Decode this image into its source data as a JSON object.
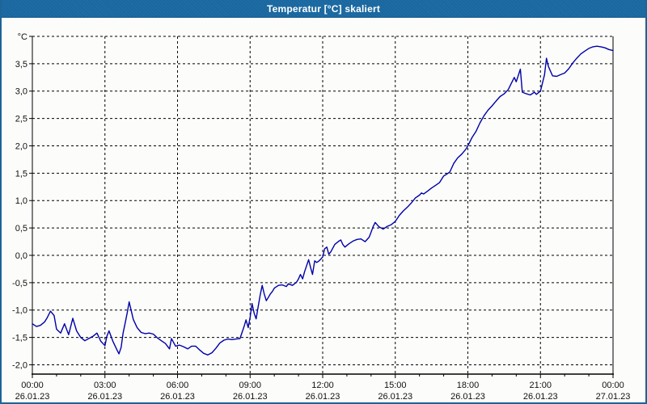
{
  "window": {
    "title": "Temperatur [°C] skaliert"
  },
  "colors": {
    "titlebar_bg": "#1d6ca5",
    "titlebar_text": "#ffffff",
    "window_border": "#1e6496",
    "chart_bg": "#fcfdfb",
    "grid_line": "#000000",
    "axis_line": "#000000",
    "label_text": "#111111",
    "series_line": "#0000a8"
  },
  "chart_data": {
    "type": "line",
    "title": "Temperatur [°C] skaliert",
    "xlabel": "",
    "ylabel": "°C",
    "grid": true,
    "legend": "none",
    "xlim_hours": [
      0,
      24
    ],
    "ylim": [
      -2.17,
      4.0
    ],
    "y_unit_label": {
      "label": "°C",
      "value": 4.0
    },
    "y_ticks": [
      {
        "label": "3,5",
        "value": 3.5
      },
      {
        "label": "3,0",
        "value": 3.0
      },
      {
        "label": "2,5",
        "value": 2.5
      },
      {
        "label": "2,0",
        "value": 2.0
      },
      {
        "label": "1,5",
        "value": 1.5
      },
      {
        "label": "1,0",
        "value": 1.0
      },
      {
        "label": "0,5",
        "value": 0.5
      },
      {
        "label": "0,0",
        "value": 0.0
      },
      {
        "label": "-0,5",
        "value": -0.5
      },
      {
        "label": "-1,0",
        "value": -1.0
      },
      {
        "label": "-1,5",
        "value": -1.5
      },
      {
        "label": "-2,0",
        "value": -2.0
      }
    ],
    "x_ticks": [
      {
        "hour": 0,
        "time": "00:00",
        "date": "26.01.23"
      },
      {
        "hour": 3,
        "time": "03:00",
        "date": "26.01.23"
      },
      {
        "hour": 6,
        "time": "06:00",
        "date": "26.01.23"
      },
      {
        "hour": 9,
        "time": "09:00",
        "date": "26.01.23"
      },
      {
        "hour": 12,
        "time": "12:00",
        "date": "26.01.23"
      },
      {
        "hour": 15,
        "time": "15:00",
        "date": "26.01.23"
      },
      {
        "hour": 18,
        "time": "18:00",
        "date": "26.01.23"
      },
      {
        "hour": 21,
        "time": "21:00",
        "date": "26.01.23"
      },
      {
        "hour": 24,
        "time": "00:00",
        "date": "27.01.23"
      }
    ],
    "series": [
      {
        "name": "Temperatur",
        "color": "#0000a8",
        "points": [
          [
            0.0,
            -1.25
          ],
          [
            0.17,
            -1.3
          ],
          [
            0.33,
            -1.28
          ],
          [
            0.5,
            -1.22
          ],
          [
            0.6,
            -1.15
          ],
          [
            0.75,
            -1.02
          ],
          [
            0.9,
            -1.1
          ],
          [
            1.0,
            -1.35
          ],
          [
            1.17,
            -1.42
          ],
          [
            1.33,
            -1.25
          ],
          [
            1.5,
            -1.45
          ],
          [
            1.67,
            -1.15
          ],
          [
            1.83,
            -1.38
          ],
          [
            2.0,
            -1.5
          ],
          [
            2.17,
            -1.56
          ],
          [
            2.33,
            -1.52
          ],
          [
            2.5,
            -1.48
          ],
          [
            2.67,
            -1.42
          ],
          [
            2.83,
            -1.57
          ],
          [
            3.0,
            -1.65
          ],
          [
            3.08,
            -1.48
          ],
          [
            3.17,
            -1.38
          ],
          [
            3.33,
            -1.57
          ],
          [
            3.5,
            -1.73
          ],
          [
            3.58,
            -1.8
          ],
          [
            3.67,
            -1.68
          ],
          [
            3.75,
            -1.42
          ],
          [
            3.83,
            -1.25
          ],
          [
            3.92,
            -1.05
          ],
          [
            4.0,
            -0.85
          ],
          [
            4.08,
            -1.0
          ],
          [
            4.17,
            -1.17
          ],
          [
            4.33,
            -1.32
          ],
          [
            4.5,
            -1.41
          ],
          [
            4.67,
            -1.43
          ],
          [
            4.83,
            -1.42
          ],
          [
            5.0,
            -1.44
          ],
          [
            5.17,
            -1.51
          ],
          [
            5.33,
            -1.56
          ],
          [
            5.5,
            -1.61
          ],
          [
            5.67,
            -1.71
          ],
          [
            5.75,
            -1.52
          ],
          [
            5.92,
            -1.66
          ],
          [
            6.08,
            -1.64
          ],
          [
            6.25,
            -1.67
          ],
          [
            6.42,
            -1.71
          ],
          [
            6.58,
            -1.66
          ],
          [
            6.75,
            -1.66
          ],
          [
            6.92,
            -1.73
          ],
          [
            7.08,
            -1.79
          ],
          [
            7.25,
            -1.82
          ],
          [
            7.42,
            -1.78
          ],
          [
            7.58,
            -1.7
          ],
          [
            7.75,
            -1.6
          ],
          [
            7.92,
            -1.55
          ],
          [
            8.08,
            -1.53
          ],
          [
            8.25,
            -1.54
          ],
          [
            8.42,
            -1.53
          ],
          [
            8.58,
            -1.52
          ],
          [
            8.75,
            -1.3
          ],
          [
            8.83,
            -1.18
          ],
          [
            8.92,
            -1.32
          ],
          [
            9.0,
            -1.13
          ],
          [
            9.08,
            -0.88
          ],
          [
            9.17,
            -1.06
          ],
          [
            9.25,
            -1.16
          ],
          [
            9.33,
            -0.95
          ],
          [
            9.42,
            -0.72
          ],
          [
            9.5,
            -0.55
          ],
          [
            9.58,
            -0.7
          ],
          [
            9.67,
            -0.83
          ],
          [
            9.75,
            -0.77
          ],
          [
            9.83,
            -0.71
          ],
          [
            9.92,
            -0.66
          ],
          [
            10.0,
            -0.6
          ],
          [
            10.17,
            -0.55
          ],
          [
            10.33,
            -0.54
          ],
          [
            10.5,
            -0.57
          ],
          [
            10.58,
            -0.52
          ],
          [
            10.75,
            -0.55
          ],
          [
            10.92,
            -0.49
          ],
          [
            11.0,
            -0.43
          ],
          [
            11.08,
            -0.35
          ],
          [
            11.17,
            -0.43
          ],
          [
            11.25,
            -0.3
          ],
          [
            11.42,
            -0.08
          ],
          [
            11.5,
            -0.22
          ],
          [
            11.58,
            -0.35
          ],
          [
            11.67,
            -0.1
          ],
          [
            11.75,
            -0.13
          ],
          [
            11.83,
            -0.11
          ],
          [
            11.92,
            -0.07
          ],
          [
            12.0,
            -0.03
          ],
          [
            12.08,
            0.12
          ],
          [
            12.17,
            0.15
          ],
          [
            12.25,
            0.02
          ],
          [
            12.33,
            0.06
          ],
          [
            12.5,
            0.2
          ],
          [
            12.67,
            0.26
          ],
          [
            12.75,
            0.28
          ],
          [
            12.83,
            0.2
          ],
          [
            12.92,
            0.15
          ],
          [
            13.08,
            0.21
          ],
          [
            13.25,
            0.26
          ],
          [
            13.42,
            0.29
          ],
          [
            13.58,
            0.3
          ],
          [
            13.75,
            0.25
          ],
          [
            13.92,
            0.33
          ],
          [
            14.0,
            0.42
          ],
          [
            14.08,
            0.52
          ],
          [
            14.17,
            0.6
          ],
          [
            14.33,
            0.52
          ],
          [
            14.5,
            0.48
          ],
          [
            14.67,
            0.53
          ],
          [
            14.83,
            0.56
          ],
          [
            15.0,
            0.62
          ],
          [
            15.17,
            0.73
          ],
          [
            15.33,
            0.81
          ],
          [
            15.5,
            0.88
          ],
          [
            15.67,
            0.96
          ],
          [
            15.83,
            1.05
          ],
          [
            16.0,
            1.1
          ],
          [
            16.08,
            1.14
          ],
          [
            16.17,
            1.12
          ],
          [
            16.33,
            1.17
          ],
          [
            16.5,
            1.23
          ],
          [
            16.67,
            1.28
          ],
          [
            16.83,
            1.33
          ],
          [
            17.0,
            1.45
          ],
          [
            17.08,
            1.47
          ],
          [
            17.25,
            1.52
          ],
          [
            17.42,
            1.68
          ],
          [
            17.58,
            1.78
          ],
          [
            17.75,
            1.85
          ],
          [
            17.92,
            1.94
          ],
          [
            18.0,
            2.0
          ],
          [
            18.17,
            2.15
          ],
          [
            18.33,
            2.26
          ],
          [
            18.5,
            2.42
          ],
          [
            18.67,
            2.55
          ],
          [
            18.83,
            2.65
          ],
          [
            19.0,
            2.73
          ],
          [
            19.17,
            2.82
          ],
          [
            19.33,
            2.9
          ],
          [
            19.5,
            2.95
          ],
          [
            19.67,
            3.03
          ],
          [
            19.83,
            3.17
          ],
          [
            19.92,
            3.25
          ],
          [
            20.0,
            3.17
          ],
          [
            20.17,
            3.4
          ],
          [
            20.25,
            2.98
          ],
          [
            20.42,
            2.95
          ],
          [
            20.58,
            2.93
          ],
          [
            20.75,
            2.98
          ],
          [
            20.83,
            2.94
          ],
          [
            21.0,
            3.0
          ],
          [
            21.17,
            3.3
          ],
          [
            21.25,
            3.6
          ],
          [
            21.33,
            3.45
          ],
          [
            21.5,
            3.28
          ],
          [
            21.67,
            3.27
          ],
          [
            21.83,
            3.3
          ],
          [
            22.0,
            3.33
          ],
          [
            22.17,
            3.41
          ],
          [
            22.33,
            3.51
          ],
          [
            22.5,
            3.6
          ],
          [
            22.67,
            3.68
          ],
          [
            22.83,
            3.73
          ],
          [
            23.0,
            3.78
          ],
          [
            23.17,
            3.81
          ],
          [
            23.33,
            3.82
          ],
          [
            23.5,
            3.81
          ],
          [
            23.67,
            3.79
          ],
          [
            23.83,
            3.76
          ],
          [
            24.0,
            3.74
          ]
        ]
      }
    ]
  }
}
